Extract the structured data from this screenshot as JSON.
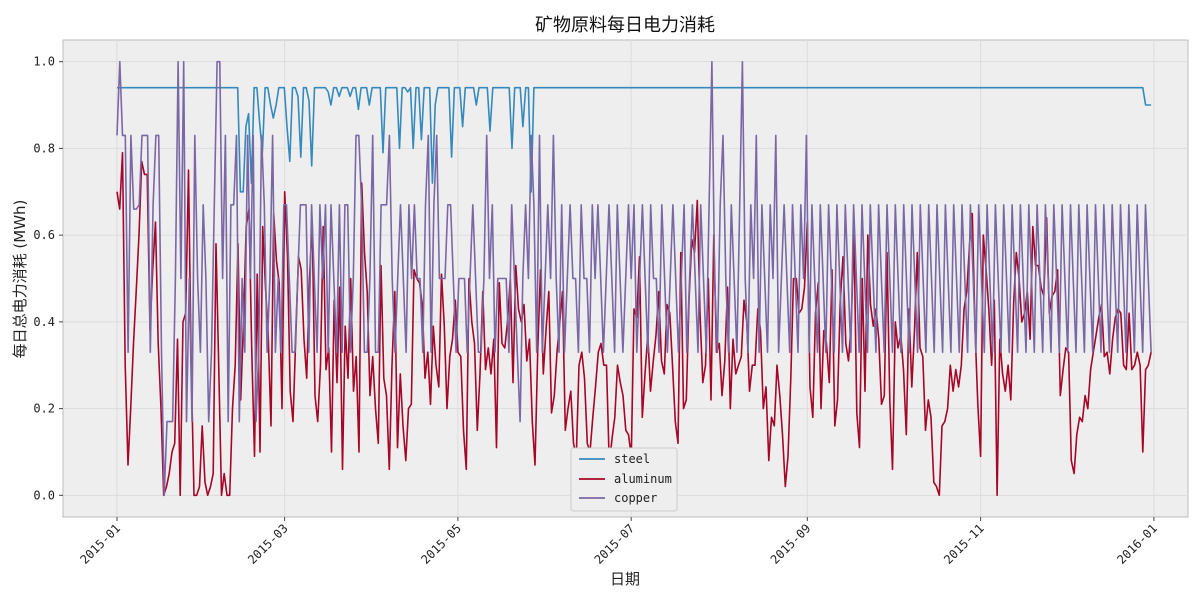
{
  "chart_data": {
    "type": "line",
    "title": "矿物原料每日电力消耗",
    "xlabel": "日期",
    "ylabel": "每日总电力消耗 (MWh)",
    "xlim": [
      "2014-12-13",
      "2016-01-13"
    ],
    "ylim": [
      -0.05,
      1.05
    ],
    "x_ticks": [
      "2015-01",
      "2015-03",
      "2015-05",
      "2015-07",
      "2015-09",
      "2015-11",
      "2016-01"
    ],
    "y_ticks": [
      "0.0",
      "0.2",
      "0.4",
      "0.6",
      "0.8",
      "1.0"
    ],
    "grid": true,
    "legend_position": "lower center",
    "x_start": "2015-01-01",
    "x_end": "2015-12-31",
    "series": [
      {
        "name": "steel",
        "color": "#348ABD",
        "values": [
          0.94,
          0.94,
          0.94,
          0.94,
          0.94,
          0.94,
          0.94,
          0.94,
          0.94,
          0.94,
          0.94,
          0.94,
          0.94,
          0.94,
          0.94,
          0.94,
          0.94,
          0.94,
          0.94,
          0.94,
          0.94,
          0.94,
          0.94,
          0.94,
          0.94,
          0.94,
          0.94,
          0.94,
          0.94,
          0.94,
          0.94,
          0.94,
          0.94,
          0.94,
          0.94,
          0.94,
          0.94,
          0.94,
          0.94,
          0.94,
          0.94,
          0.94,
          0.94,
          0.94,
          0.94,
          0.7,
          0.7,
          0.85,
          0.88,
          0.72,
          0.94,
          0.94,
          0.86,
          0.79,
          0.94,
          0.94,
          0.9,
          0.87,
          0.9,
          0.94,
          0.94,
          0.94,
          0.85,
          0.77,
          0.94,
          0.94,
          0.92,
          0.78,
          0.94,
          0.94,
          0.91,
          0.76,
          0.94,
          0.94,
          0.94,
          0.94,
          0.94,
          0.93,
          0.9,
          0.94,
          0.94,
          0.92,
          0.94,
          0.94,
          0.94,
          0.92,
          0.94,
          0.94,
          0.89,
          0.94,
          0.94,
          0.94,
          0.9,
          0.94,
          0.94,
          0.94,
          0.94,
          0.79,
          0.94,
          0.94,
          0.94,
          0.94,
          0.94,
          0.8,
          0.94,
          0.94,
          0.93,
          0.94,
          0.8,
          0.94,
          0.94,
          0.82,
          0.94,
          0.94,
          0.94,
          0.72,
          0.9,
          0.94,
          0.94,
          0.94,
          0.94,
          0.94,
          0.78,
          0.94,
          0.94,
          0.94,
          0.85,
          0.94,
          0.94,
          0.94,
          0.94,
          0.9,
          0.94,
          0.94,
          0.94,
          0.94,
          0.84,
          0.94,
          0.94,
          0.94,
          0.94,
          0.94,
          0.94,
          0.94,
          0.8,
          0.94,
          0.94,
          0.94,
          0.85,
          0.94,
          0.94,
          0.7,
          0.94,
          0.94,
          0.94,
          0.94,
          0.94,
          0.94,
          0.94,
          0.94,
          0.94,
          0.94,
          0.94,
          0.94,
          0.94,
          0.94,
          0.94,
          0.94,
          0.94,
          0.94,
          0.94,
          0.94,
          0.94,
          0.94,
          0.94,
          0.94,
          0.94,
          0.94,
          0.94,
          0.94,
          0.94,
          0.94,
          0.94,
          0.94,
          0.94,
          0.94,
          0.94,
          0.94,
          0.94,
          0.94,
          0.94,
          0.94,
          0.94,
          0.94,
          0.94,
          0.94,
          0.94,
          0.94,
          0.94,
          0.94,
          0.94,
          0.94,
          0.94,
          0.94,
          0.94,
          0.94,
          0.94,
          0.94,
          0.94,
          0.94,
          0.94,
          0.94,
          0.94,
          0.94,
          0.94,
          0.94,
          0.94,
          0.94,
          0.94,
          0.94,
          0.94,
          0.94,
          0.94,
          0.94,
          0.94,
          0.94,
          0.94,
          0.94,
          0.94,
          0.94,
          0.94,
          0.94,
          0.94,
          0.94,
          0.94,
          0.94,
          0.94,
          0.94,
          0.94,
          0.94,
          0.94,
          0.94,
          0.94,
          0.94,
          0.94,
          0.94,
          0.94,
          0.94,
          0.94,
          0.94,
          0.94,
          0.94,
          0.94,
          0.94,
          0.94,
          0.94,
          0.94,
          0.94,
          0.94,
          0.94,
          0.94,
          0.94,
          0.94,
          0.94,
          0.94,
          0.94,
          0.94,
          0.94,
          0.94,
          0.94,
          0.94,
          0.94,
          0.94,
          0.94,
          0.94,
          0.94,
          0.94,
          0.94,
          0.94,
          0.94,
          0.94,
          0.94,
          0.94,
          0.94,
          0.94,
          0.94,
          0.94,
          0.94,
          0.94,
          0.94,
          0.94,
          0.94,
          0.94,
          0.94,
          0.94,
          0.94,
          0.94,
          0.94,
          0.94,
          0.94,
          0.94,
          0.94,
          0.94,
          0.94,
          0.94,
          0.94,
          0.94,
          0.94,
          0.94,
          0.94,
          0.94,
          0.94,
          0.94,
          0.94,
          0.94,
          0.94,
          0.94,
          0.94,
          0.94,
          0.94,
          0.94,
          0.94,
          0.94,
          0.94,
          0.94,
          0.94,
          0.94,
          0.94,
          0.94,
          0.94,
          0.94,
          0.94,
          0.94,
          0.94,
          0.94,
          0.94,
          0.94,
          0.94,
          0.94,
          0.94,
          0.94,
          0.94,
          0.94,
          0.94,
          0.94,
          0.94,
          0.94,
          0.94,
          0.94,
          0.94,
          0.94,
          0.94,
          0.94,
          0.94,
          0.94,
          0.94,
          0.94,
          0.94,
          0.94,
          0.94,
          0.94,
          0.94,
          0.94,
          0.94,
          0.94,
          0.94,
          0.94,
          0.94,
          0.94,
          0.94,
          0.94,
          0.94,
          0.94,
          0.94,
          0.94,
          0.9,
          0.9,
          0.9
        ]
      },
      {
        "name": "aluminum",
        "color": "#A60628",
        "values": [
          0.7,
          0.66,
          0.79,
          0.3,
          0.07,
          0.2,
          0.35,
          0.47,
          0.6,
          0.77,
          0.74,
          0.74,
          0.38,
          0.52,
          0.63,
          0.35,
          0.2,
          0.0,
          0.02,
          0.05,
          0.1,
          0.12,
          0.36,
          0.0,
          0.4,
          0.42,
          0.75,
          0.3,
          0.0,
          0.0,
          0.02,
          0.16,
          0.03,
          0.0,
          0.02,
          0.05,
          0.58,
          0.3,
          0.0,
          0.05,
          0.0,
          0.0,
          0.2,
          0.3,
          0.58,
          0.22,
          0.4,
          0.62,
          0.66,
          0.34,
          0.09,
          0.51,
          0.1,
          0.62,
          0.48,
          0.37,
          0.16,
          0.65,
          0.54,
          0.49,
          0.2,
          0.7,
          0.55,
          0.24,
          0.17,
          0.36,
          0.55,
          0.52,
          0.36,
          0.27,
          0.5,
          0.63,
          0.23,
          0.17,
          0.3,
          0.62,
          0.29,
          0.34,
          0.1,
          0.45,
          0.26,
          0.48,
          0.06,
          0.39,
          0.27,
          0.5,
          0.24,
          0.32,
          0.1,
          0.72,
          0.56,
          0.47,
          0.23,
          0.32,
          0.2,
          0.12,
          0.53,
          0.27,
          0.23,
          0.06,
          0.3,
          0.47,
          0.11,
          0.28,
          0.16,
          0.08,
          0.2,
          0.21,
          0.52,
          0.5,
          0.49,
          0.44,
          0.27,
          0.33,
          0.21,
          0.39,
          0.3,
          0.25,
          0.51,
          0.39,
          0.2,
          0.32,
          0.36,
          0.45,
          0.33,
          0.32,
          0.15,
          0.06,
          0.5,
          0.4,
          0.35,
          0.15,
          0.28,
          0.47,
          0.29,
          0.34,
          0.28,
          0.36,
          0.11,
          0.49,
          0.35,
          0.34,
          0.4,
          0.5,
          0.26,
          0.53,
          0.43,
          0.4,
          0.44,
          0.31,
          0.36,
          0.17,
          0.07,
          0.34,
          0.52,
          0.28,
          0.38,
          0.47,
          0.19,
          0.23,
          0.33,
          0.4,
          0.47,
          0.15,
          0.2,
          0.24,
          0.12,
          0.09,
          0.3,
          0.33,
          0.27,
          0.12,
          0.1,
          0.18,
          0.25,
          0.33,
          0.35,
          0.3,
          0.3,
          0.07,
          0.13,
          0.18,
          0.3,
          0.26,
          0.23,
          0.15,
          0.14,
          0.09,
          0.43,
          0.41,
          0.55,
          0.18,
          0.28,
          0.37,
          0.24,
          0.31,
          0.37,
          0.47,
          0.31,
          0.28,
          0.44,
          0.42,
          0.3,
          0.17,
          0.12,
          0.56,
          0.2,
          0.22,
          0.45,
          0.59,
          0.56,
          0.68,
          0.42,
          0.26,
          0.3,
          0.5,
          0.22,
          0.6,
          0.33,
          0.35,
          0.23,
          0.31,
          0.48,
          0.2,
          0.36,
          0.28,
          0.3,
          0.32,
          0.45,
          0.4,
          0.24,
          0.3,
          0.3,
          0.43,
          0.38,
          0.2,
          0.25,
          0.08,
          0.18,
          0.16,
          0.3,
          0.23,
          0.14,
          0.02,
          0.09,
          0.27,
          0.5,
          0.5,
          0.42,
          0.43,
          0.48,
          0.63,
          0.25,
          0.18,
          0.42,
          0.49,
          0.2,
          0.38,
          0.35,
          0.26,
          0.52,
          0.16,
          0.22,
          0.45,
          0.55,
          0.35,
          0.31,
          0.4,
          0.6,
          0.19,
          0.11,
          0.5,
          0.24,
          0.6,
          0.44,
          0.39,
          0.43,
          0.36,
          0.21,
          0.23,
          0.56,
          0.22,
          0.06,
          0.4,
          0.34,
          0.37,
          0.29,
          0.14,
          0.43,
          0.25,
          0.38,
          0.56,
          0.34,
          0.32,
          0.15,
          0.22,
          0.18,
          0.03,
          0.02,
          0.0,
          0.16,
          0.17,
          0.2,
          0.3,
          0.24,
          0.29,
          0.25,
          0.3,
          0.43,
          0.47,
          0.58,
          0.65,
          0.38,
          0.21,
          0.09,
          0.6,
          0.52,
          0.43,
          0.3,
          0.45,
          0.0,
          0.36,
          0.28,
          0.24,
          0.3,
          0.22,
          0.44,
          0.56,
          0.5,
          0.4,
          0.42,
          0.47,
          0.36,
          0.62,
          0.53,
          0.53,
          0.48,
          0.46,
          0.64,
          0.42,
          0.46,
          0.47,
          0.52,
          0.23,
          0.29,
          0.34,
          0.33,
          0.08,
          0.05,
          0.14,
          0.18,
          0.17,
          0.23,
          0.2,
          0.29,
          0.33,
          0.37,
          0.41,
          0.44,
          0.32,
          0.33,
          0.28,
          0.36,
          0.41,
          0.43,
          0.42,
          0.3,
          0.29,
          0.42,
          0.29,
          0.3,
          0.33,
          0.3,
          0.1,
          0.29,
          0.3,
          0.33
        ]
      },
      {
        "name": "copper",
        "color": "#7A68A6",
        "values": [
          0.83,
          1.0,
          0.83,
          0.83,
          0.33,
          0.83,
          0.66,
          0.66,
          0.67,
          0.83,
          0.83,
          0.83,
          0.33,
          0.67,
          0.83,
          0.83,
          0.33,
          0.0,
          0.17,
          0.17,
          0.17,
          0.5,
          1.0,
          0.5,
          1.0,
          0.17,
          0.5,
          0.17,
          0.83,
          0.5,
          0.33,
          0.67,
          0.5,
          0.17,
          0.33,
          0.67,
          1.0,
          1.0,
          0.5,
          0.83,
          0.17,
          0.67,
          0.67,
          0.83,
          0.17,
          0.5,
          0.33,
          0.83,
          0.5,
          0.83,
          0.17,
          0.33,
          0.83,
          0.67,
          0.33,
          0.5,
          0.83,
          0.33,
          0.5,
          0.33,
          0.67,
          0.67,
          0.5,
          0.33,
          0.33,
          0.5,
          0.67,
          0.67,
          0.67,
          0.33,
          0.67,
          0.5,
          0.33,
          0.67,
          0.5,
          0.67,
          0.33,
          0.67,
          0.5,
          0.33,
          0.67,
          0.33,
          0.67,
          0.67,
          0.33,
          0.5,
          0.83,
          0.83,
          0.67,
          0.33,
          0.33,
          0.5,
          0.83,
          0.33,
          0.33,
          0.67,
          0.67,
          0.67,
          0.83,
          0.5,
          0.33,
          0.5,
          0.67,
          0.5,
          0.33,
          0.67,
          0.5,
          0.67,
          0.5,
          0.5,
          0.33,
          0.67,
          0.83,
          0.33,
          0.67,
          0.83,
          0.5,
          0.5,
          0.5,
          0.67,
          0.67,
          0.5,
          0.33,
          0.5,
          0.5,
          0.5,
          0.33,
          0.5,
          0.67,
          0.5,
          0.33,
          0.33,
          0.5,
          0.83,
          0.5,
          0.67,
          0.33,
          0.5,
          0.5,
          0.5,
          0.5,
          0.33,
          0.67,
          0.5,
          0.33,
          0.17,
          0.5,
          0.67,
          0.5,
          0.83,
          0.67,
          0.33,
          0.83,
          0.33,
          0.5,
          0.67,
          0.5,
          0.83,
          0.5,
          0.33,
          0.67,
          0.33,
          0.5,
          0.67,
          0.5,
          0.5,
          0.33,
          0.67,
          0.5,
          0.5,
          0.33,
          0.67,
          0.5,
          0.67,
          0.5,
          0.33,
          0.5,
          0.67,
          0.5,
          0.33,
          0.67,
          0.5,
          0.33,
          0.5,
          0.67,
          0.5,
          0.67,
          0.33,
          0.5,
          0.67,
          0.5,
          0.33,
          0.67,
          0.5,
          0.5,
          0.33,
          0.67,
          0.5,
          0.33,
          0.5,
          0.67,
          0.5,
          0.33,
          0.5,
          0.67,
          0.33,
          0.5,
          0.67,
          0.5,
          0.33,
          0.67,
          0.5,
          0.33,
          0.67,
          1.0,
          0.5,
          0.33,
          0.67,
          0.83,
          0.5,
          0.33,
          0.67,
          0.5,
          0.33,
          0.67,
          1.0,
          0.5,
          0.33,
          0.67,
          0.5,
          0.83,
          0.33,
          0.67,
          0.5,
          0.33,
          0.67,
          0.5,
          0.83,
          0.33,
          0.5,
          0.67,
          0.5,
          0.33,
          0.67,
          0.5,
          0.33,
          0.67,
          0.5,
          0.83,
          0.33,
          0.67,
          0.5,
          0.33,
          0.67,
          0.5,
          0.33,
          0.67,
          0.5,
          0.33,
          0.67,
          0.5,
          0.33,
          0.67,
          0.5,
          0.33,
          0.67,
          0.5,
          0.33,
          0.67,
          0.5,
          0.33,
          0.67,
          0.5,
          0.33,
          0.67,
          0.5,
          0.33,
          0.67,
          0.5,
          0.33,
          0.67,
          0.5,
          0.33,
          0.67,
          0.5,
          0.33,
          0.67,
          0.5,
          0.33,
          0.67,
          0.5,
          0.33,
          0.67,
          0.5,
          0.33,
          0.67,
          0.5,
          0.33,
          0.67,
          0.5,
          0.33,
          0.67,
          0.5,
          0.33,
          0.67,
          0.5,
          0.33,
          0.67,
          0.5,
          0.33,
          0.67,
          0.5,
          0.33,
          0.67,
          0.5,
          0.33,
          0.67,
          0.5,
          0.33,
          0.67,
          0.5,
          0.33,
          0.67,
          0.5,
          0.33,
          0.67,
          0.5,
          0.33,
          0.67,
          0.5,
          0.33,
          0.67,
          0.5,
          0.33,
          0.67,
          0.5,
          0.33,
          0.67,
          0.5,
          0.33,
          0.67,
          0.5,
          0.33,
          0.67,
          0.5,
          0.33,
          0.67,
          0.5,
          0.33,
          0.67,
          0.5,
          0.33,
          0.67,
          0.5,
          0.33,
          0.67,
          0.5,
          0.33,
          0.67,
          0.5,
          0.33,
          0.67,
          0.5,
          0.33,
          0.67,
          0.5,
          0.33,
          0.67,
          0.5,
          0.33,
          0.67,
          0.5,
          0.33
        ]
      }
    ]
  }
}
